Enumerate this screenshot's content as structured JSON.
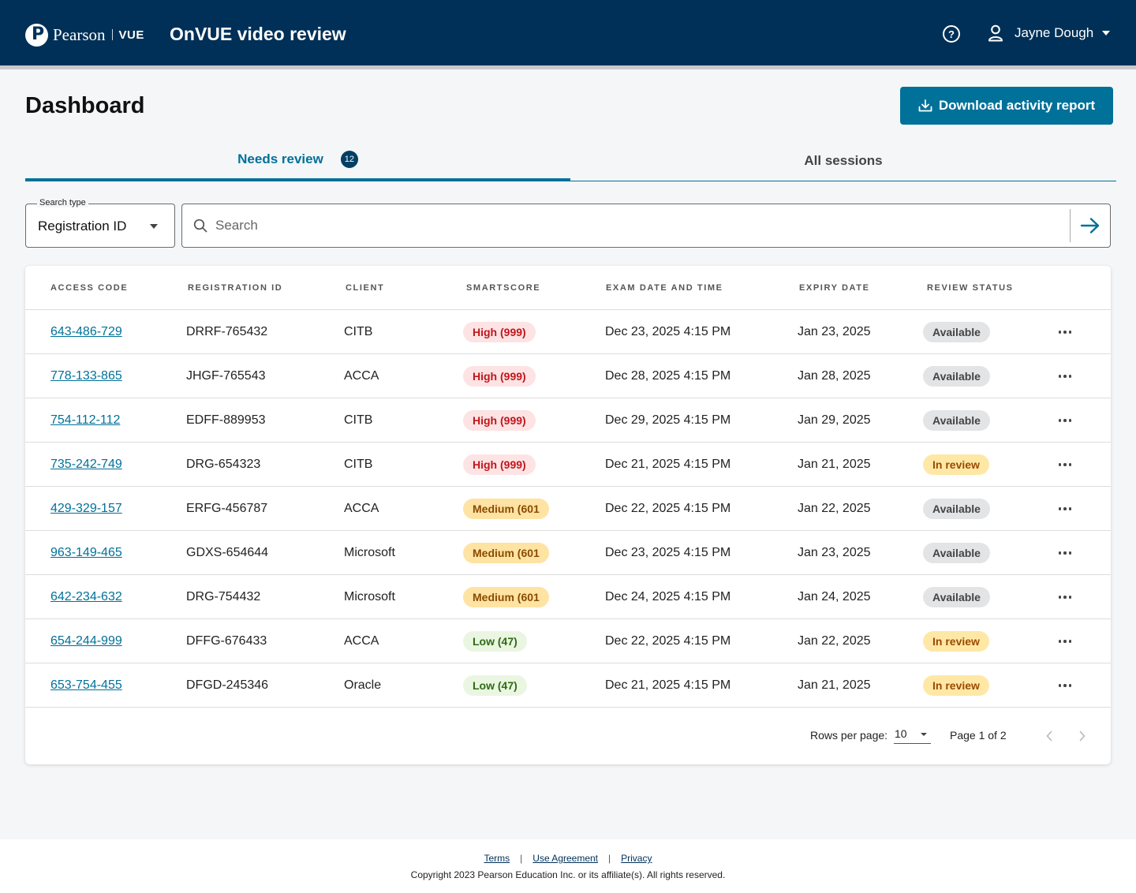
{
  "header": {
    "logo_word": "Pearson",
    "logo_vue": "VUE",
    "app_title": "OnVUE video review",
    "help_icon": "question-circle-icon",
    "user_name": "Jayne Dough"
  },
  "page": {
    "title": "Dashboard",
    "download_label": "Download activity report"
  },
  "tabs": [
    {
      "label": "Needs review",
      "badge": "12",
      "active": true
    },
    {
      "label": "All sessions",
      "active": false
    }
  ],
  "search": {
    "type_label": "Search type",
    "type_value": "Registration ID",
    "placeholder": "Search",
    "value": ""
  },
  "table": {
    "columns": [
      "Access code",
      "Registration ID",
      "Client",
      "Smartscore",
      "Exam date and time",
      "Expiry date",
      "Review status"
    ],
    "rows": [
      {
        "access_code": "643-486-729",
        "registration_id": "DRRF-765432",
        "client": "CITB",
        "smartscore": "High (999)",
        "score_level": "high",
        "exam_datetime": "Dec 23, 2025 4:15 PM",
        "expiry": "Jan 23, 2025",
        "status": "Available"
      },
      {
        "access_code": "778-133-865",
        "registration_id": "JHGF-765543",
        "client": "ACCA",
        "smartscore": "High (999)",
        "score_level": "high",
        "exam_datetime": "Dec 28, 2025 4:15 PM",
        "expiry": "Jan 28, 2025",
        "status": "Available"
      },
      {
        "access_code": "754-112-112",
        "registration_id": "EDFF-889953",
        "client": "CITB",
        "smartscore": "High (999)",
        "score_level": "high",
        "exam_datetime": "Dec 29, 2025 4:15 PM",
        "expiry": "Jan 29, 2025",
        "status": "Available"
      },
      {
        "access_code": "735-242-749",
        "registration_id": "DRG-654323",
        "client": "CITB",
        "smartscore": "High (999)",
        "score_level": "high",
        "exam_datetime": "Dec 21, 2025 4:15 PM",
        "expiry": "Jan 21, 2025",
        "status": "In review"
      },
      {
        "access_code": "429-329-157",
        "registration_id": "ERFG-456787",
        "client": "ACCA",
        "smartscore": "Medium (601",
        "score_level": "medium",
        "exam_datetime": "Dec 22, 2025 4:15 PM",
        "expiry": "Jan 22, 2025",
        "status": "Available"
      },
      {
        "access_code": "963-149-465",
        "registration_id": "GDXS-654644",
        "client": "Microsoft",
        "smartscore": "Medium (601",
        "score_level": "medium",
        "exam_datetime": "Dec 23, 2025 4:15 PM",
        "expiry": "Jan 23, 2025",
        "status": "Available"
      },
      {
        "access_code": "642-234-632",
        "registration_id": "DRG-754432",
        "client": "Microsoft",
        "smartscore": "Medium (601",
        "score_level": "medium",
        "exam_datetime": "Dec 24, 2025 4:15 PM",
        "expiry": "Jan 24, 2025",
        "status": "Available"
      },
      {
        "access_code": "654-244-999",
        "registration_id": "DFFG-676433",
        "client": "ACCA",
        "smartscore": "Low (47)",
        "score_level": "low",
        "exam_datetime": "Dec 22, 2025 4:15 PM",
        "expiry": "Jan 22, 2025",
        "status": "In review"
      },
      {
        "access_code": "653-754-455",
        "registration_id": "DFGD-245346",
        "client": "Oracle",
        "smartscore": "Low (47)",
        "score_level": "low",
        "exam_datetime": "Dec 21, 2025 4:15 PM",
        "expiry": "Jan 21, 2025",
        "status": "In review"
      }
    ]
  },
  "pagination": {
    "rows_label": "Rows per page:",
    "rows_value": "10",
    "page_label": "Page 1 of 2"
  },
  "footer": {
    "links": [
      "Terms",
      "Use Agreement",
      "Privacy"
    ],
    "separator": "|",
    "copyright": "Copyright 2023 Pearson Education Inc. or its affiliate(s). All rights reserved."
  },
  "colors": {
    "header_bg": "#003057",
    "accent": "#007199",
    "high_bg": "#fde3e3",
    "high_fg": "#c0161d",
    "medium_bg": "#ffe3a3",
    "medium_fg": "#8a4b00",
    "low_bg": "#eaf6e1",
    "low_fg": "#2e6b13",
    "available_bg": "#e3e4e6",
    "available_fg": "#444444",
    "inreview_bg": "#ffe8a6",
    "inreview_fg": "#9a4a00"
  }
}
